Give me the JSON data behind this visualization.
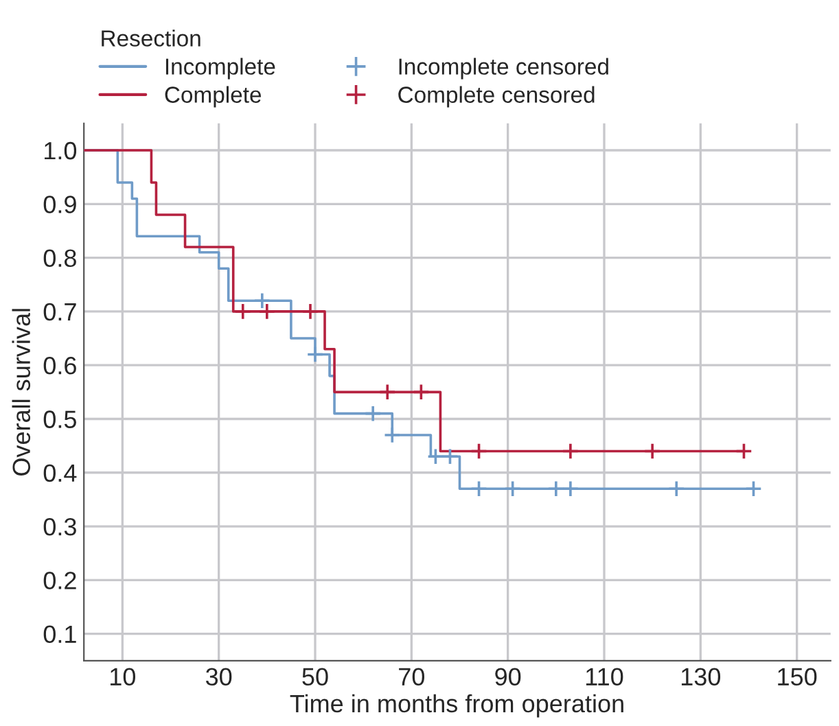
{
  "chart_data": {
    "type": "step",
    "xlabel": "Time in months from operation",
    "ylabel": "Overall survival",
    "legend_title": "Resection",
    "legend": "top left",
    "xlim": [
      2,
      157
    ],
    "xticks": [
      10,
      30,
      50,
      70,
      90,
      110,
      130,
      150
    ],
    "ylim": [
      0.05,
      1.05
    ],
    "yticks": [
      0.1,
      0.2,
      0.3,
      0.4,
      0.5,
      0.6,
      0.7,
      0.8,
      0.9,
      {
        "value": 1.0,
        "label": "1.0"
      }
    ],
    "grid": true,
    "series": [
      {
        "name": "Incomplete",
        "color": "#6f9bc8",
        "x": [
          2,
          9,
          12,
          13,
          26,
          30,
          32,
          45,
          50,
          53,
          54,
          66,
          74,
          80,
          141
        ],
        "values": [
          1.0,
          0.94,
          0.91,
          0.84,
          0.81,
          0.78,
          0.72,
          0.65,
          0.62,
          0.58,
          0.51,
          0.47,
          0.43,
          0.37,
          0.37
        ]
      },
      {
        "name": "Complete",
        "color": "#b5213f",
        "x": [
          2,
          16,
          17,
          23,
          33,
          52,
          54,
          76,
          139
        ],
        "values": [
          1.0,
          0.94,
          0.88,
          0.82,
          0.7,
          0.63,
          0.55,
          0.44,
          0.44
        ]
      },
      {
        "name": "Incomplete censored",
        "type": "scatter",
        "marker": "cross",
        "color": "#6f9bc8",
        "x": [
          39,
          50,
          62,
          66,
          75,
          78,
          84,
          91,
          100,
          103,
          125,
          141
        ],
        "values": [
          0.72,
          0.62,
          0.51,
          0.47,
          0.43,
          0.43,
          0.37,
          0.37,
          0.37,
          0.37,
          0.37,
          0.37
        ]
      },
      {
        "name": "Complete censored",
        "type": "scatter",
        "marker": "cross",
        "color": "#b5213f",
        "x": [
          35,
          40,
          49,
          65,
          72,
          84,
          103,
          120,
          139
        ],
        "values": [
          0.7,
          0.7,
          0.7,
          0.55,
          0.55,
          0.44,
          0.44,
          0.44,
          0.44
        ]
      }
    ]
  }
}
